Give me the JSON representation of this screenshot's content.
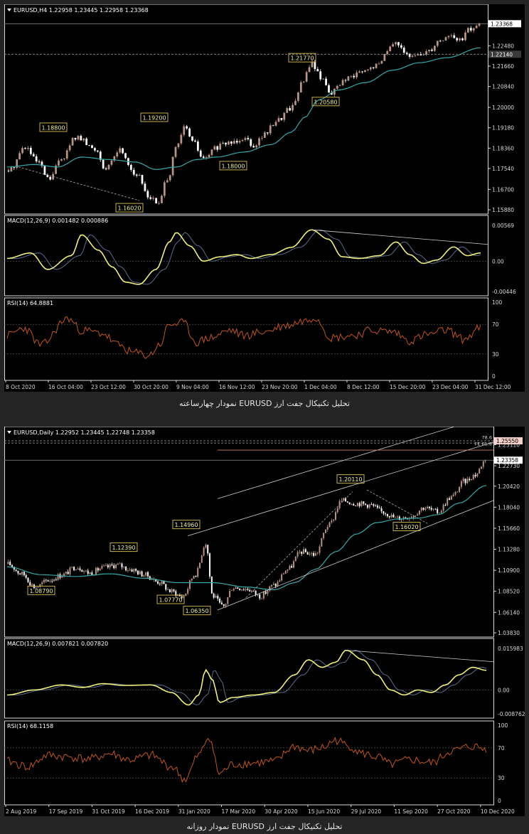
{
  "colors": {
    "bull": "#b99484",
    "bear": "#ffffff",
    "ma": "#35a8a8",
    "macd": "#f0f07a",
    "signal": "#5a6e8a",
    "rsi": "#c2551c",
    "label_bg": "#f2f09a",
    "label_border": "#c6b04a",
    "frame": "#d9d9d9"
  },
  "charts": [
    {
      "id": "h4",
      "header": "EURUSD,H4  1.22958 1.23445 1.22958 1.23368",
      "price_axis_labels": [
        "1.23368",
        "1.22480",
        "1.22140",
        "1.21660",
        "1.20840",
        "1.20000",
        "1.19180",
        "1.18360",
        "1.17540",
        "1.16700",
        "1.15880"
      ],
      "current_price": "1.23368",
      "line_price": "1.22140",
      "annotations": [
        "1.18800",
        "1.19200",
        "1.16020",
        "1.18000",
        "1.21770",
        "1.20580"
      ],
      "macd": {
        "label": "MACD(12,26,9) 0.001482 0.000886",
        "axis": [
          "0.00569",
          "0.00",
          "-0.00446"
        ]
      },
      "rsi": {
        "label": "RSI(14) 64.8881",
        "axis": [
          "100",
          "70",
          "30",
          "0"
        ]
      },
      "time_labels": [
        "8 Oct 2020",
        "16 Oct 04:00",
        "23 Oct 12:00",
        "30 Oct 20:00",
        "9 Nov 04:00",
        "16 Nov 12:00",
        "23 Nov 20:00",
        "1 Dec 04:00",
        "8 Dec 12:00",
        "15 Dec 20:00",
        "23 Dec 04:00",
        "31 Dec 12:00"
      ],
      "caption": "تحلیل تکنیکال جفت ارز EURUSD نمودار چهارساعته"
    },
    {
      "id": "daily",
      "header": "EURUSD,Daily  1.22952 1.23445 1.22748 1.23358",
      "price_axis_labels": [
        "1.25550",
        "1.25110",
        "1.23358",
        "1.22730",
        "1.20420",
        "1.18040",
        "1.15660",
        "1.13280",
        "1.10900",
        "1.08520",
        "1.06140",
        "1.03830"
      ],
      "current_price": "1.23358",
      "top_price": "1.25550",
      "fib_labels": [
        "78.6",
        "FE 61.8"
      ],
      "annotations": [
        "1.12390",
        "1.08790",
        "1.14960",
        "1.07770",
        "1.06350",
        "1.20110",
        "1.16020"
      ],
      "macd": {
        "label": "MACD(12,26,9) 0.007821 0.007820",
        "axis": [
          "0.015983",
          "0.00",
          "-0.008762"
        ]
      },
      "rsi": {
        "label": "RSI(14) 68.1158",
        "axis": [
          "100",
          "70",
          "30",
          "0"
        ]
      },
      "time_labels": [
        "2 Aug 2019",
        "17 Sep 2019",
        "31 Oct 2019",
        "16 Dec 2019",
        "31 Jan 2020",
        "17 Mar 2020",
        "30 Apr 2020",
        "15 Jun 2020",
        "29 Jul 2020",
        "11 Sep 2020",
        "27 Oct 2020",
        "10 Dec 2020"
      ],
      "caption": "تحلیل تکنیکال جفت ارز EURUSD نمودار روزانه"
    }
  ],
  "chart_data": [
    {
      "type": "candlestick",
      "title": "EURUSD,H4",
      "ohlc_last": {
        "open": 1.22958,
        "high": 1.23445,
        "low": 1.22958,
        "close": 1.23368
      },
      "ylim": [
        1.1588,
        1.2375
      ],
      "anchors": [
        [
          0,
          1.1745
        ],
        [
          0.05,
          1.184
        ],
        [
          0.085,
          1.178
        ],
        [
          0.12,
          1.171
        ],
        [
          0.16,
          1.18
        ],
        [
          0.2,
          1.188
        ],
        [
          0.26,
          1.183
        ],
        [
          0.29,
          1.175
        ],
        [
          0.33,
          1.183
        ],
        [
          0.38,
          1.173
        ],
        [
          0.42,
          1.164
        ],
        [
          0.445,
          1.161
        ],
        [
          0.475,
          1.172
        ],
        [
          0.5,
          1.184
        ],
        [
          0.525,
          1.192
        ],
        [
          0.55,
          1.186
        ],
        [
          0.58,
          1.179
        ],
        [
          0.62,
          1.184
        ],
        [
          0.66,
          1.186
        ],
        [
          0.7,
          1.188
        ],
        [
          0.73,
          1.185
        ],
        [
          0.76,
          1.189
        ],
        [
          0.8,
          1.195
        ],
        [
          0.84,
          1.2
        ],
        [
          0.875,
          1.21
        ],
        [
          0.9,
          1.218
        ],
        [
          0.93,
          1.212
        ],
        [
          0.96,
          1.206
        ],
        [
          1.0,
          1.211
        ],
        [
          1.05,
          1.214
        ],
        [
          1.1,
          1.217
        ],
        [
          1.13,
          1.224
        ],
        [
          1.16,
          1.226
        ],
        [
          1.19,
          1.22
        ],
        [
          1.22,
          1.221
        ],
        [
          1.25,
          1.223
        ],
        [
          1.28,
          1.227
        ],
        [
          1.31,
          1.229
        ],
        [
          1.34,
          1.227
        ],
        [
          1.37,
          1.231
        ],
        [
          1.4,
          1.2337
        ]
      ],
      "ma_anchors": [
        [
          0,
          1.176
        ],
        [
          0.08,
          1.177
        ],
        [
          0.15,
          1.176
        ],
        [
          0.22,
          1.18
        ],
        [
          0.3,
          1.179
        ],
        [
          0.38,
          1.178
        ],
        [
          0.44,
          1.175
        ],
        [
          0.5,
          1.176
        ],
        [
          0.56,
          1.179
        ],
        [
          0.62,
          1.18
        ],
        [
          0.7,
          1.182
        ],
        [
          0.78,
          1.185
        ],
        [
          0.84,
          1.19
        ],
        [
          0.88,
          1.196
        ],
        [
          0.92,
          1.203
        ],
        [
          0.98,
          1.207
        ],
        [
          1.06,
          1.21
        ],
        [
          1.14,
          1.215
        ],
        [
          1.22,
          1.218
        ],
        [
          1.3,
          1.22
        ],
        [
          1.4,
          1.224
        ]
      ],
      "macd": {
        "ylim": [
          -0.0055,
          0.0065
        ],
        "anchors": [
          [
            0,
            0.0005
          ],
          [
            0.07,
            0.0015
          ],
          [
            0.12,
            -0.0015
          ],
          [
            0.19,
            0.001
          ],
          [
            0.22,
            0.0048
          ],
          [
            0.27,
            0.002
          ],
          [
            0.31,
            -0.001
          ],
          [
            0.35,
            -0.0038
          ],
          [
            0.39,
            -0.0042
          ],
          [
            0.44,
            -0.0015
          ],
          [
            0.48,
            0.0035
          ],
          [
            0.5,
            0.0052
          ],
          [
            0.54,
            0.0028
          ],
          [
            0.58,
            0.0
          ],
          [
            0.63,
            0.0008
          ],
          [
            0.68,
            0.0012
          ],
          [
            0.72,
            0.0005
          ],
          [
            0.78,
            0.0012
          ],
          [
            0.84,
            0.0025
          ],
          [
            0.9,
            0.0057
          ],
          [
            0.95,
            0.004
          ],
          [
            0.99,
            0.0008
          ],
          [
            1.04,
            0.0005
          ],
          [
            1.1,
            0.001
          ],
          [
            1.15,
            0.0035
          ],
          [
            1.19,
            0.0012
          ],
          [
            1.23,
            -0.0004
          ],
          [
            1.27,
            0.0002
          ],
          [
            1.32,
            0.0026
          ],
          [
            1.36,
            0.001
          ],
          [
            1.4,
            0.0015
          ]
        ]
      },
      "rsi": {
        "ylim": [
          0,
          100
        ],
        "anchors": [
          [
            0,
            55
          ],
          [
            0.05,
            65
          ],
          [
            0.1,
            42
          ],
          [
            0.18,
            78
          ],
          [
            0.22,
            62
          ],
          [
            0.28,
            58
          ],
          [
            0.33,
            42
          ],
          [
            0.37,
            32
          ],
          [
            0.42,
            28
          ],
          [
            0.45,
            42
          ],
          [
            0.48,
            70
          ],
          [
            0.52,
            72
          ],
          [
            0.56,
            46
          ],
          [
            0.6,
            52
          ],
          [
            0.66,
            62
          ],
          [
            0.7,
            55
          ],
          [
            0.76,
            60
          ],
          [
            0.82,
            68
          ],
          [
            0.88,
            75
          ],
          [
            0.91,
            80
          ],
          [
            0.96,
            52
          ],
          [
            1.02,
            55
          ],
          [
            1.08,
            62
          ],
          [
            1.14,
            60
          ],
          [
            1.19,
            48
          ],
          [
            1.24,
            56
          ],
          [
            1.3,
            62
          ],
          [
            1.35,
            50
          ],
          [
            1.4,
            65
          ]
        ]
      }
    },
    {
      "type": "candlestick",
      "title": "EURUSD,Daily",
      "ohlc_last": {
        "open": 1.22952,
        "high": 1.23445,
        "low": 1.22748,
        "close": 1.23358
      },
      "ylim": [
        1.0383,
        1.2555
      ],
      "anchors": [
        [
          0,
          1.116
        ],
        [
          0.04,
          1.105
        ],
        [
          0.08,
          1.09
        ],
        [
          0.12,
          1.098
        ],
        [
          0.16,
          1.104
        ],
        [
          0.2,
          1.113
        ],
        [
          0.24,
          1.106
        ],
        [
          0.28,
          1.112
        ],
        [
          0.32,
          1.115
        ],
        [
          0.36,
          1.11
        ],
        [
          0.4,
          1.104
        ],
        [
          0.44,
          1.096
        ],
        [
          0.48,
          1.085
        ],
        [
          0.51,
          1.079
        ],
        [
          0.55,
          1.105
        ],
        [
          0.58,
          1.14
        ],
        [
          0.6,
          1.08
        ],
        [
          0.63,
          1.068
        ],
        [
          0.66,
          1.09
        ],
        [
          0.7,
          1.088
        ],
        [
          0.74,
          1.08
        ],
        [
          0.78,
          1.092
        ],
        [
          0.82,
          1.11
        ],
        [
          0.86,
          1.13
        ],
        [
          0.9,
          1.127
        ],
        [
          0.94,
          1.16
        ],
        [
          0.98,
          1.188
        ],
        [
          1.02,
          1.185
        ],
        [
          1.06,
          1.183
        ],
        [
          1.1,
          1.175
        ],
        [
          1.14,
          1.168
        ],
        [
          1.18,
          1.17
        ],
        [
          1.22,
          1.18
        ],
        [
          1.26,
          1.175
        ],
        [
          1.3,
          1.192
        ],
        [
          1.34,
          1.21
        ],
        [
          1.37,
          1.217
        ],
        [
          1.4,
          1.2336
        ]
      ],
      "ma_anchors": [
        [
          0,
          1.113
        ],
        [
          0.1,
          1.104
        ],
        [
          0.2,
          1.102
        ],
        [
          0.3,
          1.105
        ],
        [
          0.4,
          1.1
        ],
        [
          0.5,
          1.095
        ],
        [
          0.6,
          1.095
        ],
        [
          0.7,
          1.09
        ],
        [
          0.78,
          1.087
        ],
        [
          0.84,
          1.095
        ],
        [
          0.9,
          1.11
        ],
        [
          0.96,
          1.13
        ],
        [
          1.02,
          1.15
        ],
        [
          1.08,
          1.163
        ],
        [
          1.14,
          1.167
        ],
        [
          1.2,
          1.168
        ],
        [
          1.26,
          1.172
        ],
        [
          1.32,
          1.185
        ],
        [
          1.4,
          1.205
        ]
      ],
      "macd": {
        "ylim": [
          -0.0095,
          0.0165
        ],
        "anchors": [
          [
            0,
            -0.002
          ],
          [
            0.08,
            0.0
          ],
          [
            0.16,
            0.002
          ],
          [
            0.22,
            0.001
          ],
          [
            0.28,
            0.0025
          ],
          [
            0.34,
            0.0018
          ],
          [
            0.42,
            0.002
          ],
          [
            0.48,
            -0.001
          ],
          [
            0.53,
            -0.006
          ],
          [
            0.56,
            -0.002
          ],
          [
            0.58,
            0.008
          ],
          [
            0.6,
            0.004
          ],
          [
            0.62,
            -0.005
          ],
          [
            0.66,
            -0.003
          ],
          [
            0.72,
            -0.002
          ],
          [
            0.78,
            -0.001
          ],
          [
            0.84,
            0.006
          ],
          [
            0.88,
            0.012
          ],
          [
            0.92,
            0.009
          ],
          [
            0.96,
            0.011
          ],
          [
            0.99,
            0.0158
          ],
          [
            1.04,
            0.012
          ],
          [
            1.08,
            0.006
          ],
          [
            1.12,
            0.0
          ],
          [
            1.16,
            -0.002
          ],
          [
            1.2,
            0.0
          ],
          [
            1.24,
            -0.001
          ],
          [
            1.28,
            0.002
          ],
          [
            1.32,
            0.006
          ],
          [
            1.36,
            0.009
          ],
          [
            1.4,
            0.0078
          ]
        ]
      },
      "rsi": {
        "ylim": [
          0,
          100
        ],
        "anchors": [
          [
            0,
            52
          ],
          [
            0.06,
            45
          ],
          [
            0.12,
            60
          ],
          [
            0.18,
            58
          ],
          [
            0.24,
            55
          ],
          [
            0.3,
            62
          ],
          [
            0.36,
            54
          ],
          [
            0.42,
            60
          ],
          [
            0.48,
            45
          ],
          [
            0.52,
            28
          ],
          [
            0.56,
            60
          ],
          [
            0.59,
            85
          ],
          [
            0.62,
            36
          ],
          [
            0.66,
            48
          ],
          [
            0.72,
            50
          ],
          [
            0.78,
            52
          ],
          [
            0.84,
            72
          ],
          [
            0.88,
            66
          ],
          [
            0.92,
            70
          ],
          [
            0.96,
            80
          ],
          [
            1.0,
            72
          ],
          [
            1.04,
            62
          ],
          [
            1.08,
            58
          ],
          [
            1.12,
            48
          ],
          [
            1.18,
            54
          ],
          [
            1.24,
            50
          ],
          [
            1.3,
            66
          ],
          [
            1.36,
            72
          ],
          [
            1.4,
            68
          ]
        ]
      }
    }
  ]
}
